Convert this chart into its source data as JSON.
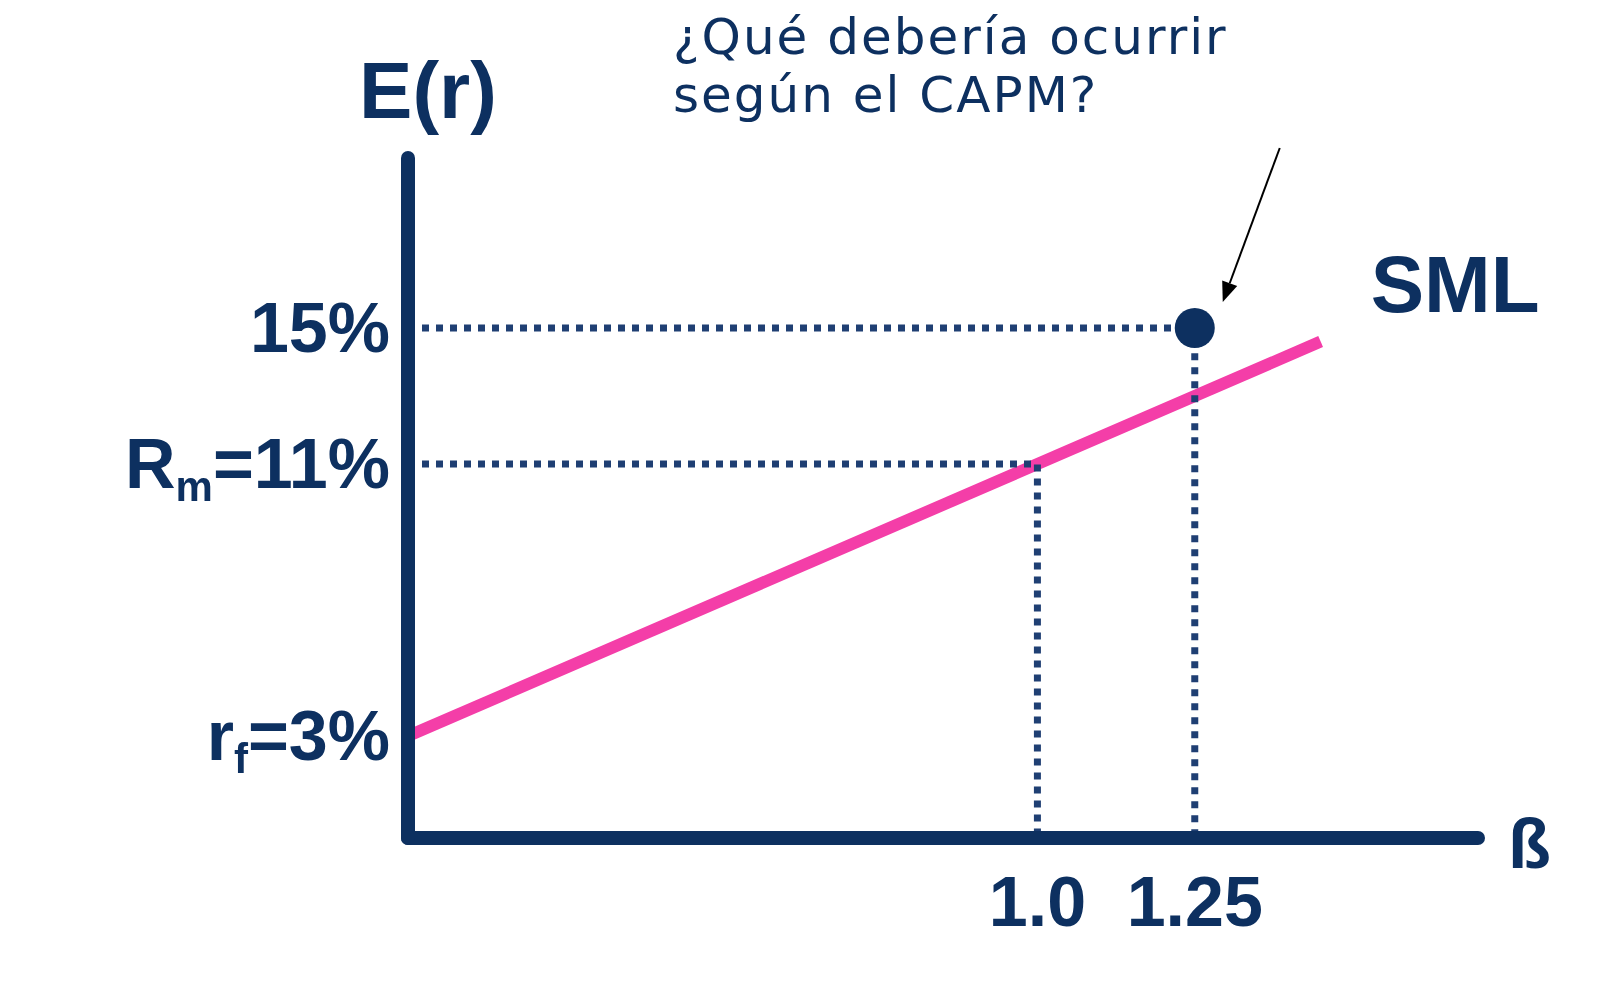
{
  "chart_data": {
    "type": "line",
    "xlabel": "ß",
    "ylabel": "E(r)",
    "annotations": [
      "¿Qué debería ocurrir según el CAPM?"
    ],
    "xlim": [
      0,
      1.7
    ],
    "ylim": [
      0,
      20
    ],
    "xticks": [
      {
        "value": 1,
        "label": "1.0"
      },
      1.25
    ],
    "yticks": [
      {
        "value": 3,
        "label": "r$_{f}$=3%"
      },
      {
        "value": 11,
        "label": "R$_{m}$=11%"
      },
      {
        "value": 15,
        "label": "15%"
      }
    ],
    "grid": false,
    "legend": false,
    "series": [
      {
        "name": "SML",
        "color": "#f43ea8",
        "x": [
          0,
          1.45
        ],
        "values": [
          3,
          14.6
        ],
        "marker": "none",
        "line_style": "solid"
      },
      {
        "color": "#1f3f73",
        "x": [
          0,
          1,
          1
        ],
        "values": [
          11,
          11,
          0
        ],
        "marker": "none",
        "line_style": "dotted"
      },
      {
        "color": "#1f3f73",
        "x": [
          0,
          1.25,
          1.25
        ],
        "values": [
          15,
          15,
          0
        ],
        "marker": "none",
        "line_style": "dotted"
      },
      {
        "type": "scatter",
        "color": "#0d3060",
        "x": [
          1.25
        ],
        "values": [
          15
        ],
        "marker": "circle"
      }
    ]
  }
}
